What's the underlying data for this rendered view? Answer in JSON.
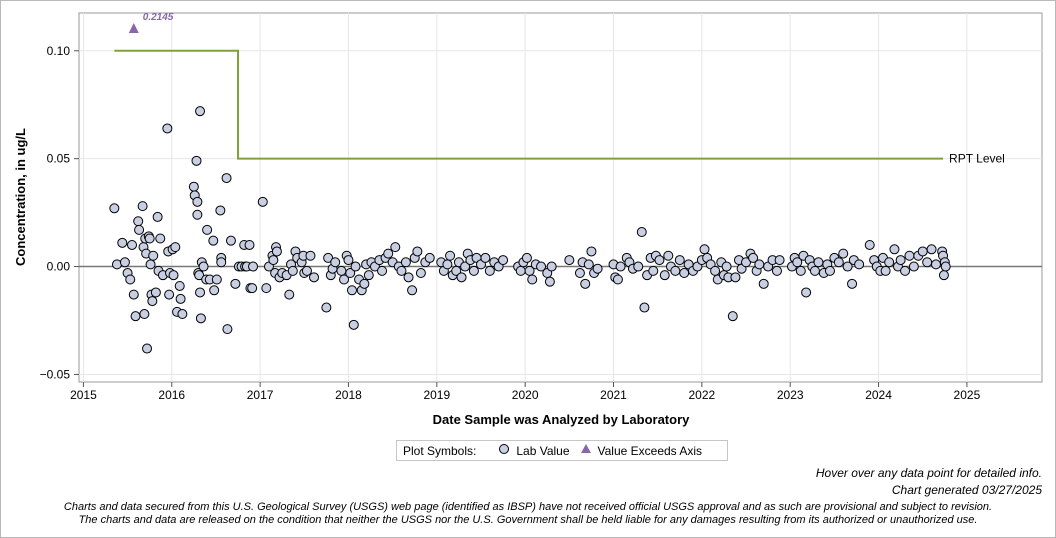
{
  "chart_data": {
    "type": "scatter",
    "xlabel": "Date Sample was Analyzed by Laboratory",
    "ylabel": "Concentration, in ug/L",
    "xlim": [
      2014.95,
      2025.85
    ],
    "ylim": [
      -0.0535,
      0.1175
    ],
    "x_ticks": [
      2015,
      2016,
      2017,
      2018,
      2019,
      2020,
      2021,
      2022,
      2023,
      2024,
      2025
    ],
    "y_ticks": [
      -0.05,
      0.0,
      0.05,
      0.1
    ],
    "y_tick_labels": [
      "−0.05",
      "0.00",
      "0.05",
      "0.10"
    ],
    "grid": true,
    "colors": {
      "marker_fill": "#c9cfe3",
      "marker_edge": "#000000",
      "rpt_line": "#7fa13b",
      "exceed_marker": "#8a67a8",
      "grid": "#e6e6e6",
      "zero_line": "#777777"
    },
    "rpt_line": {
      "label": "RPT Level",
      "segments": [
        {
          "x_start": 2015.35,
          "x_end": 2016.75,
          "y": 0.1
        },
        {
          "x_start": 2016.75,
          "x_end": 2024.73,
          "y": 0.05
        }
      ]
    },
    "exceeds_axis": [
      {
        "x": 2015.57,
        "y": 0.2145,
        "label": "0.2145"
      }
    ],
    "legend": {
      "title": "Plot Symbols:",
      "items": [
        {
          "label": "Lab Value",
          "symbol": "circle"
        },
        {
          "label": "Value Exceeds Axis",
          "symbol": "triangle"
        }
      ]
    },
    "series": [
      {
        "name": "Lab Value",
        "points": [
          [
            2015.35,
            0.027
          ],
          [
            2015.38,
            0.001
          ],
          [
            2015.44,
            0.011
          ],
          [
            2015.47,
            0.002
          ],
          [
            2015.5,
            -0.003
          ],
          [
            2015.53,
            -0.006
          ],
          [
            2015.55,
            0.01
          ],
          [
            2015.57,
            -0.013
          ],
          [
            2015.59,
            -0.023
          ],
          [
            2015.62,
            0.021
          ],
          [
            2015.63,
            0.017
          ],
          [
            2015.67,
            0.028
          ],
          [
            2015.68,
            0.009
          ],
          [
            2015.69,
            -0.022
          ],
          [
            2015.7,
            0.013
          ],
          [
            2015.71,
            0.006
          ],
          [
            2015.72,
            -0.038
          ],
          [
            2015.74,
            0.014
          ],
          [
            2015.75,
            0.013
          ],
          [
            2015.76,
            0.001
          ],
          [
            2015.77,
            -0.013
          ],
          [
            2015.78,
            -0.016
          ],
          [
            2015.79,
            0.005
          ],
          [
            2015.82,
            -0.012
          ],
          [
            2015.84,
            0.023
          ],
          [
            2015.85,
            -0.002
          ],
          [
            2015.87,
            0.013
          ],
          [
            2015.9,
            -0.004
          ],
          [
            2015.95,
            0.064
          ],
          [
            2015.96,
            0.007
          ],
          [
            2015.97,
            -0.013
          ],
          [
            2015.98,
            -0.003
          ],
          [
            2016.01,
            0.008
          ],
          [
            2016.02,
            -0.004
          ],
          [
            2016.04,
            0.009
          ],
          [
            2016.06,
            -0.021
          ],
          [
            2016.09,
            -0.009
          ],
          [
            2016.1,
            -0.015
          ],
          [
            2016.12,
            -0.022
          ],
          [
            2016.25,
            0.037
          ],
          [
            2016.26,
            0.033
          ],
          [
            2016.28,
            0.049
          ],
          [
            2016.29,
            0.03
          ],
          [
            2016.29,
            0.024
          ],
          [
            2016.3,
            -0.003
          ],
          [
            2016.31,
            -0.004
          ],
          [
            2016.32,
            -0.012
          ],
          [
            2016.32,
            0.072
          ],
          [
            2016.33,
            -0.024
          ],
          [
            2016.34,
            0.002
          ],
          [
            2016.36,
            0.0
          ],
          [
            2016.39,
            -0.006
          ],
          [
            2016.4,
            0.017
          ],
          [
            2016.43,
            -0.006
          ],
          [
            2016.47,
            0.012
          ],
          [
            2016.48,
            -0.011
          ],
          [
            2016.51,
            -0.006
          ],
          [
            2016.55,
            0.026
          ],
          [
            2016.56,
            0.004
          ],
          [
            2016.56,
            0.002
          ],
          [
            2016.62,
            0.041
          ],
          [
            2016.63,
            -0.029
          ],
          [
            2016.67,
            0.012
          ],
          [
            2016.72,
            -0.008
          ],
          [
            2016.76,
            0.0
          ],
          [
            2016.79,
            0.0
          ],
          [
            2016.82,
            0.01
          ],
          [
            2016.83,
            0.0
          ],
          [
            2016.85,
            0.0
          ],
          [
            2016.88,
            0.01
          ],
          [
            2016.89,
            -0.01
          ],
          [
            2016.91,
            -0.01
          ],
          [
            2016.92,
            0.0
          ],
          [
            2017.03,
            0.03
          ],
          [
            2017.07,
            -0.01
          ],
          [
            2017.1,
            0.0
          ],
          [
            2017.14,
            0.005
          ],
          [
            2017.15,
            0.003
          ],
          [
            2017.17,
            -0.003
          ],
          [
            2017.18,
            0.009
          ],
          [
            2017.19,
            0.007
          ],
          [
            2017.22,
            -0.005
          ],
          [
            2017.25,
            -0.003
          ],
          [
            2017.3,
            -0.004
          ],
          [
            2017.33,
            -0.013
          ],
          [
            2017.35,
            0.001
          ],
          [
            2017.37,
            -0.002
          ],
          [
            2017.4,
            0.007
          ],
          [
            2017.42,
            0.004
          ],
          [
            2017.47,
            0.002
          ],
          [
            2017.49,
            0.005
          ],
          [
            2017.5,
            -0.003
          ],
          [
            2017.53,
            -0.002
          ],
          [
            2017.57,
            0.005
          ],
          [
            2017.61,
            -0.005
          ],
          [
            2017.75,
            -0.019
          ],
          [
            2017.77,
            0.004
          ],
          [
            2017.8,
            -0.004
          ],
          [
            2017.82,
            -0.001
          ],
          [
            2017.85,
            0.002
          ],
          [
            2017.92,
            -0.002
          ],
          [
            2017.95,
            -0.006
          ],
          [
            2017.98,
            0.005
          ],
          [
            2018.0,
            0.003
          ],
          [
            2018.02,
            -0.003
          ],
          [
            2018.04,
            -0.011
          ],
          [
            2018.06,
            -0.027
          ],
          [
            2018.08,
            0.0
          ],
          [
            2018.12,
            -0.006
          ],
          [
            2018.15,
            -0.011
          ],
          [
            2018.18,
            -0.008
          ],
          [
            2018.2,
            0.001
          ],
          [
            2018.23,
            -0.004
          ],
          [
            2018.26,
            0.002
          ],
          [
            2018.3,
            0.0
          ],
          [
            2018.35,
            0.003
          ],
          [
            2018.38,
            -0.002
          ],
          [
            2018.42,
            0.004
          ],
          [
            2018.45,
            0.006
          ],
          [
            2018.5,
            0.002
          ],
          [
            2018.53,
            0.009
          ],
          [
            2018.57,
            0.0
          ],
          [
            2018.6,
            -0.002
          ],
          [
            2018.65,
            0.002
          ],
          [
            2018.68,
            -0.005
          ],
          [
            2018.72,
            -0.011
          ],
          [
            2018.75,
            0.004
          ],
          [
            2018.78,
            0.007
          ],
          [
            2018.82,
            -0.003
          ],
          [
            2018.87,
            0.002
          ],
          [
            2018.92,
            0.004
          ],
          [
            2019.05,
            0.002
          ],
          [
            2019.08,
            -0.002
          ],
          [
            2019.12,
            0.001
          ],
          [
            2019.15,
            0.005
          ],
          [
            2019.18,
            -0.004
          ],
          [
            2019.22,
            -0.002
          ],
          [
            2019.25,
            0.002
          ],
          [
            2019.28,
            -0.005
          ],
          [
            2019.32,
            0.0
          ],
          [
            2019.35,
            0.006
          ],
          [
            2019.38,
            0.003
          ],
          [
            2019.42,
            -0.002
          ],
          [
            2019.45,
            0.004
          ],
          [
            2019.5,
            0.001
          ],
          [
            2019.55,
            0.004
          ],
          [
            2019.6,
            -0.002
          ],
          [
            2019.65,
            0.002
          ],
          [
            2019.7,
            0.0
          ],
          [
            2019.75,
            0.003
          ],
          [
            2019.92,
            0.0
          ],
          [
            2019.95,
            -0.002
          ],
          [
            2019.98,
            0.002
          ],
          [
            2020.02,
            0.004
          ],
          [
            2020.05,
            -0.002
          ],
          [
            2020.08,
            -0.006
          ],
          [
            2020.12,
            0.001
          ],
          [
            2020.18,
            0.0
          ],
          [
            2020.25,
            -0.003
          ],
          [
            2020.28,
            -0.007
          ],
          [
            2020.3,
            0.0
          ],
          [
            2020.5,
            0.003
          ],
          [
            2020.62,
            -0.003
          ],
          [
            2020.65,
            0.002
          ],
          [
            2020.68,
            -0.008
          ],
          [
            2020.72,
            0.001
          ],
          [
            2020.75,
            0.007
          ],
          [
            2020.78,
            -0.003
          ],
          [
            2020.82,
            -0.001
          ],
          [
            2021.0,
            0.001
          ],
          [
            2021.02,
            -0.005
          ],
          [
            2021.05,
            -0.006
          ],
          [
            2021.08,
            0.0
          ],
          [
            2021.15,
            0.004
          ],
          [
            2021.18,
            0.002
          ],
          [
            2021.22,
            -0.001
          ],
          [
            2021.28,
            0.0
          ],
          [
            2021.32,
            0.016
          ],
          [
            2021.35,
            -0.019
          ],
          [
            2021.38,
            -0.004
          ],
          [
            2021.42,
            0.004
          ],
          [
            2021.45,
            -0.002
          ],
          [
            2021.48,
            0.005
          ],
          [
            2021.52,
            0.003
          ],
          [
            2021.58,
            -0.004
          ],
          [
            2021.62,
            0.005
          ],
          [
            2021.65,
            0.0
          ],
          [
            2021.7,
            -0.002
          ],
          [
            2021.75,
            0.003
          ],
          [
            2021.8,
            -0.003
          ],
          [
            2021.85,
            0.001
          ],
          [
            2021.9,
            -0.002
          ],
          [
            2021.95,
            0.0
          ],
          [
            2022.0,
            0.003
          ],
          [
            2022.03,
            0.008
          ],
          [
            2022.06,
            0.004
          ],
          [
            2022.1,
            0.001
          ],
          [
            2022.15,
            -0.002
          ],
          [
            2022.18,
            -0.006
          ],
          [
            2022.22,
            0.002
          ],
          [
            2022.25,
            -0.004
          ],
          [
            2022.28,
            0.0
          ],
          [
            2022.3,
            -0.005
          ],
          [
            2022.35,
            -0.023
          ],
          [
            2022.38,
            -0.005
          ],
          [
            2022.42,
            0.003
          ],
          [
            2022.45,
            -0.001
          ],
          [
            2022.5,
            0.002
          ],
          [
            2022.55,
            0.006
          ],
          [
            2022.58,
            0.004
          ],
          [
            2022.62,
            -0.002
          ],
          [
            2022.65,
            0.001
          ],
          [
            2022.7,
            -0.008
          ],
          [
            2022.75,
            0.0
          ],
          [
            2022.8,
            0.003
          ],
          [
            2022.85,
            -0.002
          ],
          [
            2022.88,
            0.003
          ],
          [
            2023.02,
            0.0
          ],
          [
            2023.05,
            0.004
          ],
          [
            2023.08,
            0.002
          ],
          [
            2023.12,
            -0.002
          ],
          [
            2023.15,
            0.005
          ],
          [
            2023.18,
            -0.012
          ],
          [
            2023.22,
            0.003
          ],
          [
            2023.25,
            0.0
          ],
          [
            2023.28,
            -0.002
          ],
          [
            2023.32,
            0.002
          ],
          [
            2023.38,
            -0.003
          ],
          [
            2023.42,
            0.001
          ],
          [
            2023.45,
            -0.002
          ],
          [
            2023.5,
            0.004
          ],
          [
            2023.55,
            0.002
          ],
          [
            2023.6,
            0.006
          ],
          [
            2023.65,
            0.0
          ],
          [
            2023.7,
            -0.008
          ],
          [
            2023.72,
            0.003
          ],
          [
            2023.78,
            0.001
          ],
          [
            2023.9,
            0.01
          ],
          [
            2023.95,
            0.003
          ],
          [
            2023.98,
            0.0
          ],
          [
            2024.02,
            -0.002
          ],
          [
            2024.05,
            0.004
          ],
          [
            2024.08,
            -0.002
          ],
          [
            2024.12,
            0.002
          ],
          [
            2024.18,
            0.008
          ],
          [
            2024.22,
            0.0
          ],
          [
            2024.25,
            0.003
          ],
          [
            2024.3,
            -0.002
          ],
          [
            2024.35,
            0.005
          ],
          [
            2024.4,
            0.0
          ],
          [
            2024.45,
            0.005
          ],
          [
            2024.5,
            0.007
          ],
          [
            2024.55,
            0.002
          ],
          [
            2024.6,
            0.008
          ],
          [
            2024.65,
            0.001
          ],
          [
            2024.72,
            0.007
          ],
          [
            2024.73,
            0.005
          ],
          [
            2024.74,
            -0.004
          ],
          [
            2024.75,
            0.002
          ],
          [
            2024.76,
            0.0
          ]
        ]
      }
    ]
  },
  "footer": {
    "hover_note": "Hover over any data point for detailed info.",
    "generated": "Chart generated 03/27/2025",
    "disclaimer_line1": "Charts and data secured from this U.S. Geological Survey (USGS) web page (identified as IBSP) have not received official USGS approval and as such are provisional and subject to revision.",
    "disclaimer_line2": "The charts and data are released on the condition that neither the USGS nor the U.S. Government shall be held liable for any damages resulting from its authorized or unauthorized use."
  }
}
